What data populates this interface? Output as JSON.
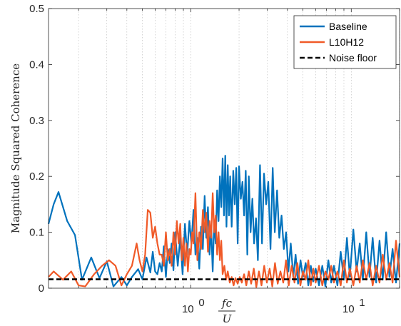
{
  "chart_data": {
    "type": "line",
    "xscale": "log",
    "xlim": [
      0.13,
      20
    ],
    "ylim": [
      0,
      0.5
    ],
    "y_ticks": [
      0,
      0.1,
      0.2,
      0.3,
      0.4,
      0.5
    ],
    "y_tick_labels": [
      "0",
      "0.1",
      "0.2",
      "0.3",
      "0.4",
      "0.5"
    ],
    "x_ticks": [
      1,
      10
    ],
    "x_tick_bases": [
      "10",
      "10"
    ],
    "x_tick_exponents": [
      "0",
      "1"
    ],
    "xlabel_numerator": "fc",
    "xlabel_denominator": "U",
    "ylabel": "Magnitude Squared Coherence",
    "grid": "x-major-minor-dotted",
    "legend_position": "top-right",
    "series": [
      {
        "name": "Baseline",
        "color": "#0072BD",
        "x": [
          0.13,
          0.14,
          0.15,
          0.17,
          0.19,
          0.21,
          0.24,
          0.27,
          0.3,
          0.33,
          0.37,
          0.4,
          0.43,
          0.47,
          0.5,
          0.53,
          0.56,
          0.58,
          0.6,
          0.62,
          0.64,
          0.66,
          0.68,
          0.7,
          0.72,
          0.74,
          0.76,
          0.78,
          0.8,
          0.83,
          0.86,
          0.89,
          0.92,
          0.95,
          0.98,
          1.01,
          1.04,
          1.07,
          1.1,
          1.13,
          1.16,
          1.19,
          1.22,
          1.25,
          1.28,
          1.31,
          1.34,
          1.37,
          1.4,
          1.43,
          1.46,
          1.49,
          1.52,
          1.55,
          1.58,
          1.61,
          1.64,
          1.67,
          1.7,
          1.73,
          1.76,
          1.8,
          1.84,
          1.88,
          1.92,
          1.96,
          2.0,
          2.05,
          2.1,
          2.15,
          2.2,
          2.25,
          2.3,
          2.36,
          2.42,
          2.48,
          2.55,
          2.62,
          2.7,
          2.78,
          2.86,
          2.95,
          3.04,
          3.14,
          3.24,
          3.34,
          3.45,
          3.56,
          3.68,
          3.8,
          3.93,
          4.06,
          4.2,
          4.35,
          4.5,
          4.66,
          4.83,
          5.0,
          5.2,
          5.4,
          5.6,
          5.8,
          6.0,
          6.3,
          6.6,
          6.9,
          7.2,
          7.5,
          7.8,
          8.2,
          8.6,
          9.0,
          9.4,
          9.8,
          10.3,
          10.8,
          11.3,
          11.8,
          12.4,
          13.0,
          13.6,
          14.3,
          15.0,
          15.7,
          16.5,
          17.3,
          18.1,
          19.0,
          20.0
        ],
        "y": [
          0.115,
          0.15,
          0.172,
          0.12,
          0.095,
          0.015,
          0.055,
          0.018,
          0.048,
          0.003,
          0.02,
          0.005,
          0.02,
          0.034,
          0.016,
          0.055,
          0.028,
          0.065,
          0.03,
          0.025,
          0.045,
          0.03,
          0.075,
          0.02,
          0.07,
          0.045,
          0.08,
          0.032,
          0.1,
          0.04,
          0.09,
          0.025,
          0.115,
          0.06,
          0.12,
          0.08,
          0.14,
          0.06,
          0.09,
          0.035,
          0.11,
          0.07,
          0.165,
          0.09,
          0.145,
          0.06,
          0.11,
          0.03,
          0.12,
          0.08,
          0.175,
          0.12,
          0.2,
          0.145,
          0.232,
          0.13,
          0.237,
          0.11,
          0.22,
          0.13,
          0.2,
          0.11,
          0.21,
          0.15,
          0.215,
          0.08,
          0.218,
          0.16,
          0.19,
          0.13,
          0.21,
          0.06,
          0.2,
          0.1,
          0.16,
          0.08,
          0.125,
          0.05,
          0.22,
          0.08,
          0.205,
          0.15,
          0.19,
          0.07,
          0.215,
          0.1,
          0.175,
          0.09,
          0.13,
          0.07,
          0.1,
          0.03,
          0.08,
          0.02,
          0.06,
          0.008,
          0.05,
          0.02,
          0.045,
          0.005,
          0.04,
          0.012,
          0.035,
          0.005,
          0.04,
          0.003,
          0.05,
          0.01,
          0.04,
          0.005,
          0.065,
          0.015,
          0.09,
          0.02,
          0.105,
          0.03,
          0.08,
          0.015,
          0.1,
          0.02,
          0.09,
          0.01,
          0.085,
          0.015,
          0.1,
          0.02,
          0.07,
          0.01,
          0.08
        ]
      },
      {
        "name": "L10H12",
        "color": "#F05A28",
        "x": [
          0.13,
          0.14,
          0.16,
          0.18,
          0.2,
          0.22,
          0.25,
          0.28,
          0.31,
          0.34,
          0.37,
          0.4,
          0.43,
          0.46,
          0.48,
          0.5,
          0.52,
          0.54,
          0.56,
          0.58,
          0.6,
          0.62,
          0.64,
          0.66,
          0.68,
          0.7,
          0.72,
          0.74,
          0.76,
          0.78,
          0.8,
          0.82,
          0.84,
          0.86,
          0.88,
          0.9,
          0.92,
          0.94,
          0.96,
          0.98,
          1.0,
          1.02,
          1.04,
          1.07,
          1.1,
          1.13,
          1.16,
          1.19,
          1.22,
          1.25,
          1.28,
          1.31,
          1.34,
          1.37,
          1.4,
          1.43,
          1.46,
          1.49,
          1.52,
          1.55,
          1.58,
          1.62,
          1.66,
          1.7,
          1.75,
          1.8,
          1.85,
          1.9,
          1.96,
          2.02,
          2.08,
          2.15,
          2.22,
          2.3,
          2.38,
          2.47,
          2.56,
          2.66,
          2.76,
          2.87,
          2.98,
          3.1,
          3.22,
          3.35,
          3.48,
          3.62,
          3.77,
          3.92,
          4.08,
          4.25,
          4.43,
          4.62,
          4.82,
          5.0,
          5.2,
          5.4,
          5.6,
          5.8,
          6.0,
          6.3,
          6.6,
          6.9,
          7.2,
          7.5,
          7.8,
          8.2,
          8.6,
          9.0,
          9.4,
          9.8,
          10.3,
          10.8,
          11.3,
          11.8,
          12.4,
          13.0,
          13.6,
          14.3,
          15.0,
          15.7,
          16.5,
          17.3,
          18.1,
          19.0,
          20.0
        ],
        "y": [
          0.02,
          0.03,
          0.015,
          0.03,
          0.005,
          0.003,
          0.025,
          0.04,
          0.05,
          0.04,
          0.005,
          0.025,
          0.04,
          0.08,
          0.05,
          0.03,
          0.06,
          0.14,
          0.135,
          0.09,
          0.11,
          0.08,
          0.06,
          0.06,
          0.04,
          0.1,
          0.05,
          0.07,
          0.04,
          0.1,
          0.06,
          0.12,
          0.08,
          0.115,
          0.05,
          0.09,
          0.04,
          0.08,
          0.03,
          0.07,
          0.06,
          0.1,
          0.08,
          0.17,
          0.05,
          0.1,
          0.07,
          0.14,
          0.1,
          0.135,
          0.065,
          0.12,
          0.09,
          0.17,
          0.1,
          0.13,
          0.06,
          0.1,
          0.05,
          0.085,
          0.025,
          0.04,
          0.015,
          0.03,
          0.01,
          0.02,
          0.005,
          0.018,
          0.008,
          0.02,
          0.01,
          0.025,
          0.005,
          0.03,
          0.008,
          0.035,
          0.002,
          0.03,
          0.005,
          0.04,
          0.01,
          0.035,
          0.003,
          0.045,
          0.008,
          0.03,
          0.01,
          0.05,
          0.005,
          0.04,
          0.01,
          0.045,
          0.005,
          0.03,
          0.015,
          0.05,
          0.005,
          0.035,
          0.01,
          0.04,
          0.005,
          0.03,
          0.015,
          0.04,
          0.01,
          0.03,
          0.005,
          0.05,
          0.01,
          0.035,
          0.005,
          0.04,
          0.01,
          0.05,
          0.015,
          0.045,
          0.005,
          0.04,
          0.01,
          0.06,
          0.015,
          0.045,
          0.01,
          0.085,
          0.02
        ]
      },
      {
        "name": "Noise floor",
        "color": "#000000",
        "style": "dashed",
        "x": [
          0.13,
          20
        ],
        "y": [
          0.016,
          0.016
        ]
      }
    ]
  }
}
